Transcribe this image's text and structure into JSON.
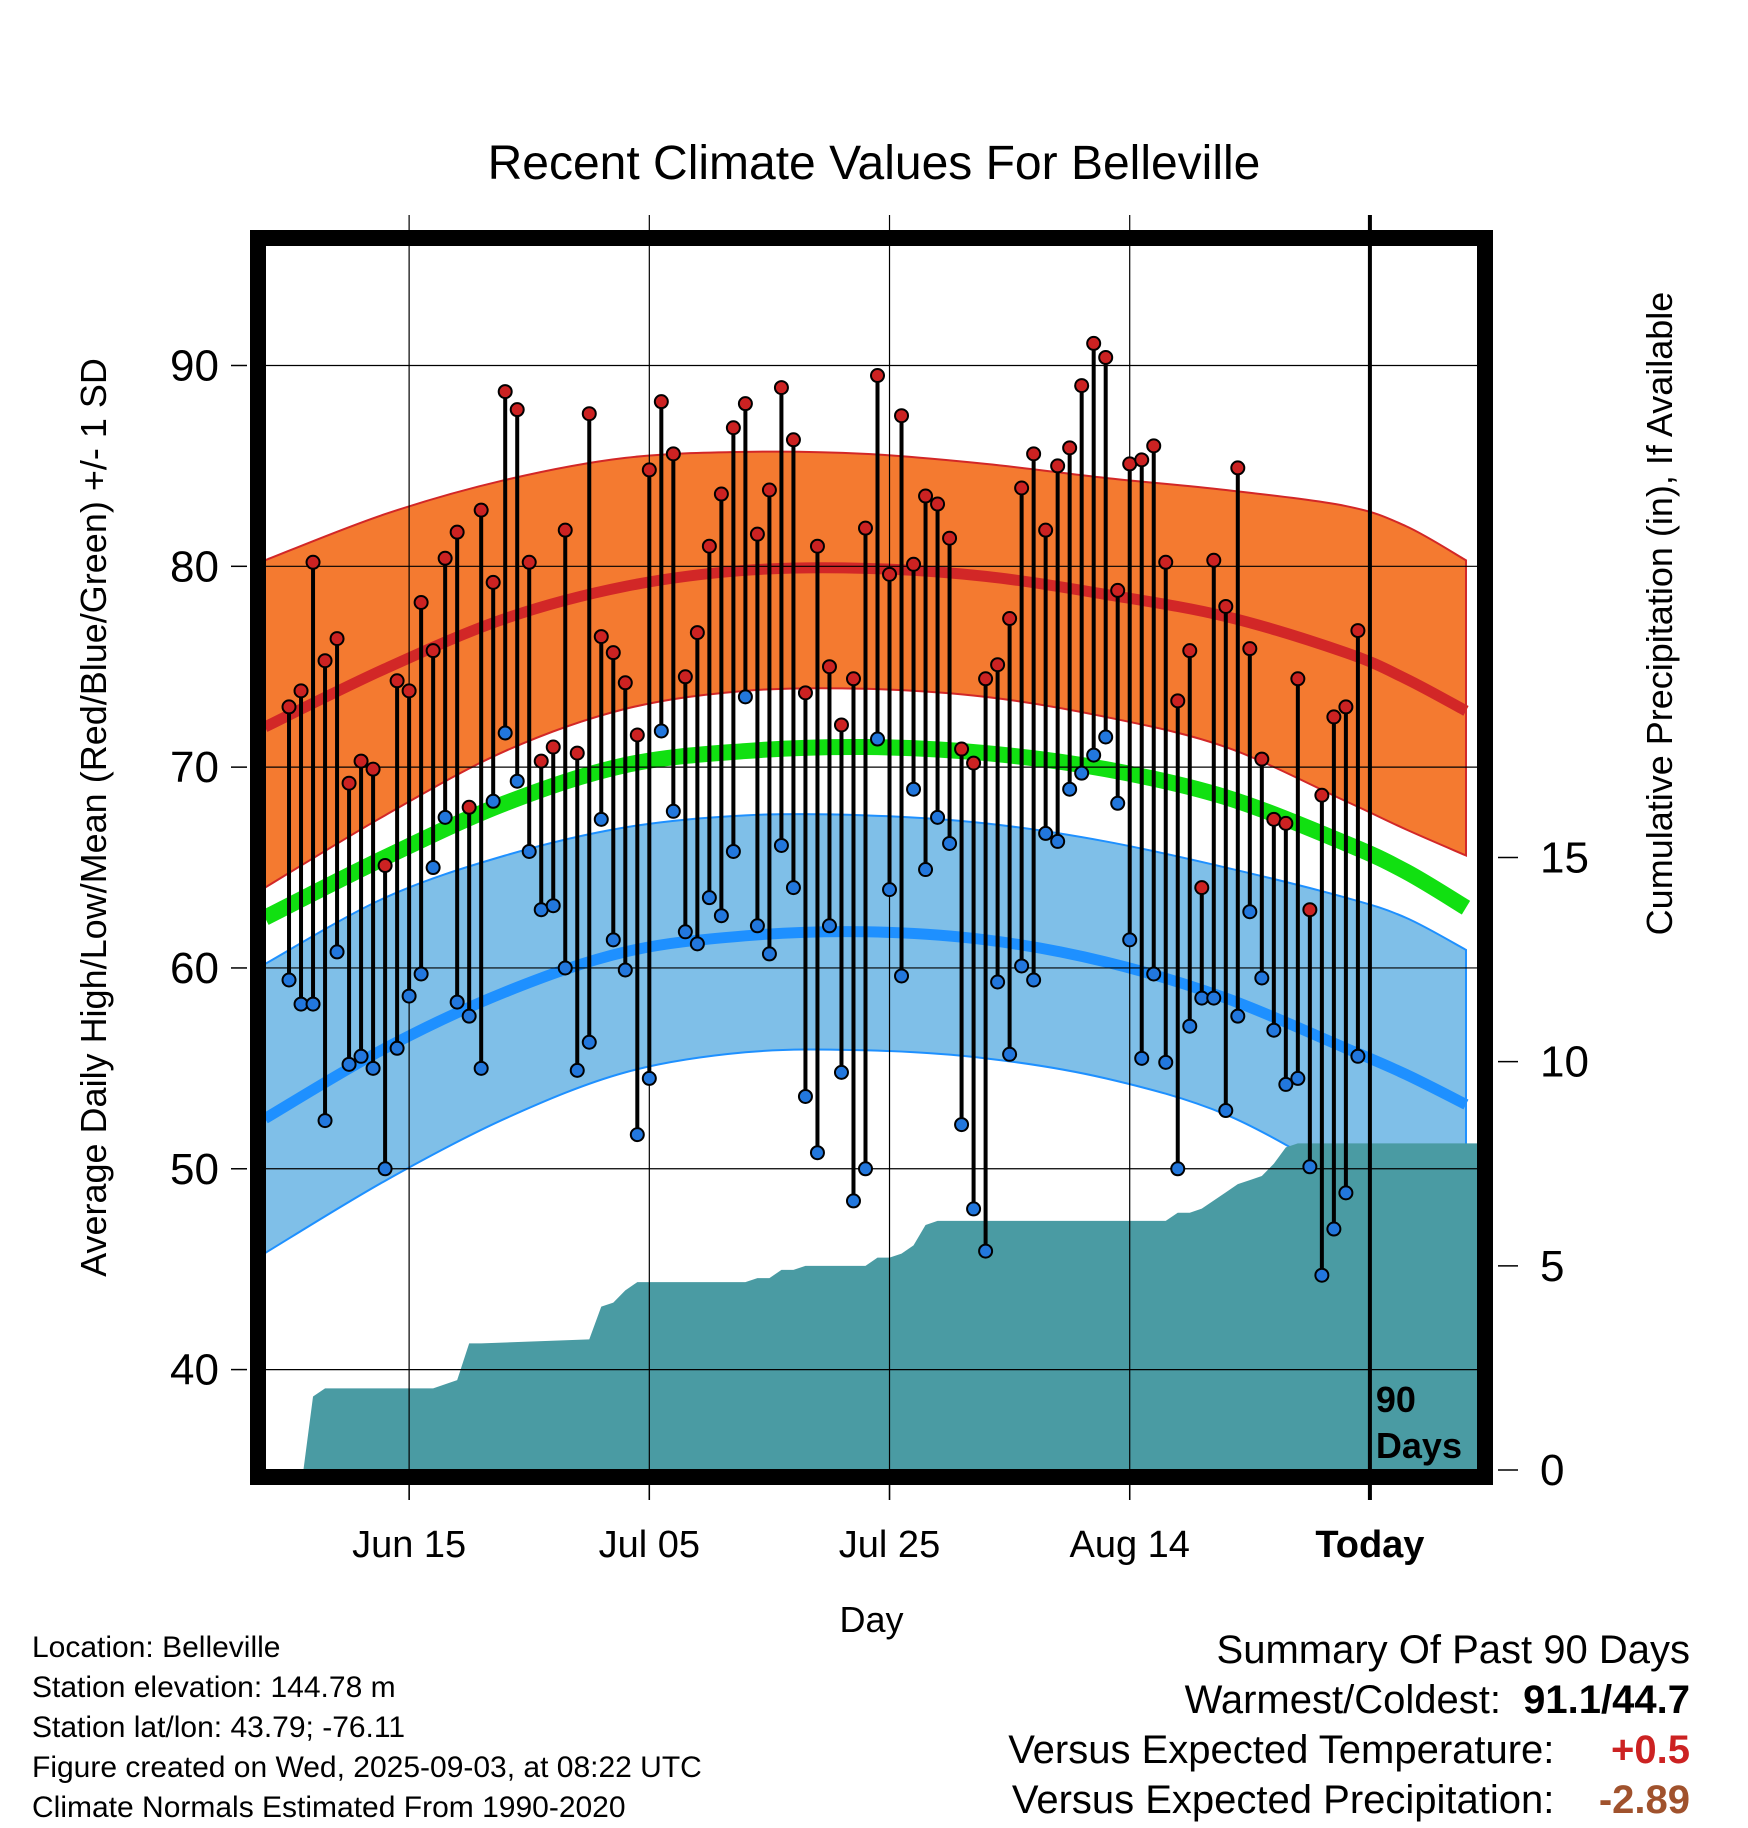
{
  "title": "Recent Climate Values For Belleville",
  "footer": {
    "location": "Location: Belleville",
    "elevation": "Station elevation: 144.78 m",
    "latlon": "Station lat/lon: 43.79; -76.11",
    "created": "Figure created on Wed, 2025-09-03, at 08:22 UTC",
    "normals": "Climate Normals Estimated From 1990-2020"
  },
  "summary": {
    "heading": "Summary Of Past 90 Days",
    "warm_cold_label": "Warmest/Coldest:",
    "warm_cold_value": "91.1/44.7",
    "temp_label": "Versus Expected Temperature:",
    "temp_value": "+0.5",
    "temp_color": "#cc2222",
    "precip_label": "Versus Expected Precipitation:",
    "precip_value": "-2.89",
    "precip_color": "#a0522d"
  },
  "chart_data": {
    "type": "line",
    "title": "Recent Climate Values For Belleville",
    "xlabel": "Day",
    "ylabel": "Average Daily High/Low/Mean (Red/Blue/Green) +/- 1 SD",
    "ylabel_right": "Cumulative Precipitation (in), If Available",
    "x_ticks": [
      "Jun 15",
      "Jul 05",
      "Jul 25",
      "Aug 14",
      "Today"
    ],
    "x_tick_days": [
      12,
      32,
      52,
      72,
      92
    ],
    "today_marker_day": 92,
    "today_label_line1": "90",
    "today_label_line2": "Days",
    "xlim": [
      0,
      101
    ],
    "ylim": [
      35,
      96
    ],
    "y_ticks": [
      40,
      50,
      60,
      70,
      80,
      90
    ],
    "y2lim": [
      0,
      30
    ],
    "y2_ticks": [
      0,
      5,
      10,
      15
    ],
    "grid": true,
    "colors": {
      "high_band": "#f47a30",
      "high_line": "#d22727",
      "low_band": "#7fbfe8",
      "low_line": "#1e90ff",
      "mean_line": "#11e011",
      "precip": "#4a9ba3",
      "high_dot": "#cc2222",
      "low_dot": "#2277dd"
    },
    "normals": {
      "x": [
        0,
        10,
        20,
        30,
        40,
        50,
        60,
        70,
        80,
        90,
        95,
        100
      ],
      "high_mean": [
        72.0,
        74.9,
        77.4,
        79.0,
        79.8,
        79.9,
        79.5,
        78.6,
        77.5,
        75.7,
        74.4,
        72.8
      ],
      "high_upper": [
        80.3,
        82.6,
        84.3,
        85.4,
        85.7,
        85.6,
        85.1,
        84.4,
        83.8,
        83.0,
        82.0,
        80.3
      ],
      "high_lower": [
        64.0,
        67.6,
        70.8,
        72.9,
        73.8,
        73.9,
        73.5,
        72.5,
        71.0,
        68.3,
        66.9,
        65.6
      ],
      "mean": [
        62.5,
        65.5,
        68.2,
        70.1,
        70.8,
        71.0,
        70.7,
        69.9,
        68.5,
        66.2,
        64.8,
        63.0
      ],
      "low_mean": [
        52.5,
        56.0,
        58.8,
        60.8,
        61.6,
        61.8,
        61.4,
        60.3,
        58.5,
        56.0,
        54.7,
        53.2
      ],
      "low_upper": [
        60.2,
        63.5,
        65.6,
        67.0,
        67.6,
        67.6,
        67.2,
        66.3,
        65.0,
        63.5,
        62.5,
        60.9
      ],
      "low_lower": [
        45.8,
        49.4,
        52.5,
        54.8,
        55.8,
        55.9,
        55.5,
        54.5,
        52.7,
        49.5,
        47.9,
        46.3
      ]
    },
    "series": [
      {
        "name": "High",
        "values": [
          73.0,
          73.8,
          80.2,
          75.3,
          76.4,
          69.2,
          70.3,
          69.9,
          65.1,
          74.3,
          73.8,
          78.2,
          75.8,
          80.4,
          81.7,
          68.0,
          82.8,
          79.2,
          88.7,
          87.8,
          80.2,
          70.3,
          71.0,
          81.8,
          70.7,
          87.6,
          76.5,
          75.7,
          74.2,
          71.6,
          84.8,
          88.2,
          85.6,
          74.5,
          76.7,
          81.0,
          83.6,
          86.9,
          88.1,
          81.6,
          83.8,
          88.9,
          86.3,
          73.7,
          81.0,
          75.0,
          72.1,
          74.4,
          81.9,
          89.5,
          79.6,
          87.5,
          80.1,
          83.5,
          83.1,
          81.4,
          70.9,
          70.2,
          74.4,
          75.1,
          77.4,
          83.9,
          85.6,
          81.8,
          85.0,
          85.9,
          89.0,
          91.1,
          90.4,
          78.8,
          85.1,
          85.3,
          86.0,
          80.2,
          73.3,
          75.8,
          64.0,
          80.3,
          78.0,
          84.9,
          75.9,
          70.4,
          67.4,
          67.2,
          74.4,
          62.9,
          68.6,
          72.5,
          73.0,
          76.8
        ]
      },
      {
        "name": "Low",
        "values": [
          59.4,
          58.2,
          58.2,
          52.4,
          60.8,
          55.2,
          55.6,
          55.0,
          50.0,
          56.0,
          58.6,
          59.7,
          65.0,
          67.5,
          58.3,
          57.6,
          55.0,
          68.3,
          71.7,
          69.3,
          65.8,
          62.9,
          63.1,
          60.0,
          54.9,
          56.3,
          67.4,
          61.4,
          59.9,
          51.7,
          54.5,
          71.8,
          67.8,
          61.8,
          61.2,
          63.5,
          62.6,
          65.8,
          73.5,
          62.1,
          60.7,
          66.1,
          64.0,
          53.6,
          50.8,
          62.1,
          54.8,
          48.4,
          50.0,
          71.4,
          63.9,
          59.6,
          68.9,
          64.9,
          67.5,
          66.2,
          52.2,
          48.0,
          45.9,
          59.3,
          55.7,
          60.1,
          59.4,
          66.7,
          66.3,
          68.9,
          69.7,
          70.6,
          71.5,
          68.2,
          61.4,
          55.5,
          59.7,
          55.3,
          50.0,
          57.1,
          58.5,
          58.5,
          52.9,
          57.6,
          62.8,
          59.5,
          56.9,
          54.2,
          54.5,
          50.1,
          44.7,
          47.0,
          48.8,
          55.6
        ]
      }
    ],
    "precip": {
      "x": [
        3.2,
        4,
        5,
        14,
        15,
        16,
        17,
        18,
        27,
        28,
        29,
        30,
        31,
        40,
        41,
        42,
        43,
        44,
        45,
        50,
        51,
        52,
        53,
        54,
        55,
        56,
        57,
        75,
        76,
        77,
        78,
        79,
        80,
        81,
        82,
        83,
        84,
        85,
        86,
        87,
        101
      ],
      "y": [
        0.0,
        1.8,
        2.0,
        2.0,
        2.1,
        2.2,
        3.1,
        3.1,
        3.2,
        4.0,
        4.1,
        4.4,
        4.6,
        4.6,
        4.7,
        4.7,
        4.9,
        4.9,
        5.0,
        5.0,
        5.2,
        5.2,
        5.3,
        5.5,
        6.0,
        6.1,
        6.1,
        6.1,
        6.3,
        6.3,
        6.4,
        6.6,
        6.8,
        7.0,
        7.1,
        7.2,
        7.5,
        7.9,
        8.0,
        8.0,
        8.0
      ]
    }
  }
}
